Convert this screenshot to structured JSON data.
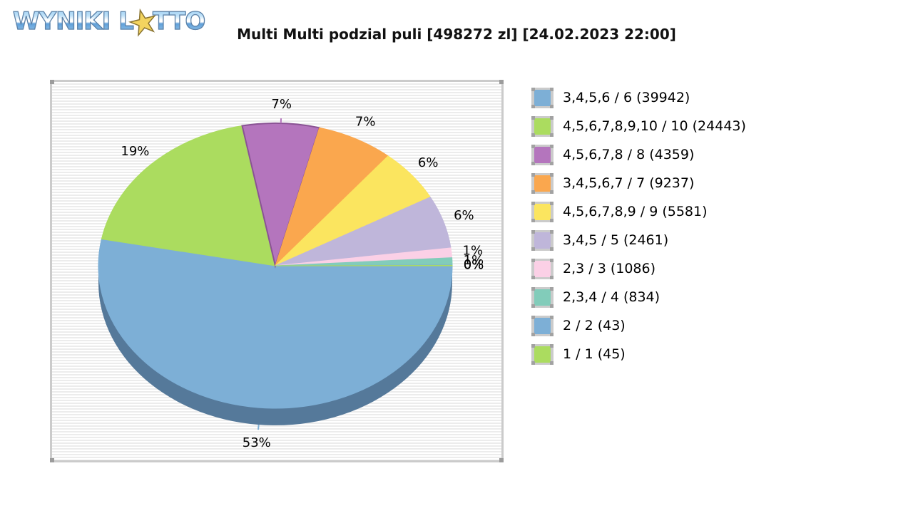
{
  "logo": {
    "word1": "WYNIKI",
    "word2_prefix": "L",
    "word2_suffix": "TTO",
    "star_icon": "★"
  },
  "title": "Multi Multi podzial puli [498272 zl] [24.02.2023 22:00]",
  "chart_data": {
    "type": "pie",
    "style": "3d",
    "title": "Multi Multi podzial puli [498272 zl] [24.02.2023 22:00]",
    "pool_total_zl": 498272,
    "draw_datetime": "24.02.2023 22:00",
    "legend_position": "right",
    "start_angle_deg": 0,
    "direction": "clockwise",
    "depth_color": "#55799a",
    "slices": [
      {
        "tier": "3,4,5,6 / 6",
        "winners": 39942,
        "percent_label": "53%",
        "legend_label": "3,4,5,6 / 6 (39942)",
        "color": "#7dafd6",
        "draw_percent": 53.0,
        "tick": true
      },
      {
        "tier": "4,5,6,7,8,9,10 / 10",
        "winners": 24443,
        "percent_label": "19%",
        "legend_label": "4,5,6,7,8,9,10 / 10 (24443)",
        "color": "#abdc5f",
        "draw_percent": 19.0
      },
      {
        "tier": "4,5,6,7,8 / 8",
        "winners": 4359,
        "percent_label": "7%",
        "legend_label": "4,5,6,7,8 / 8 (4359)",
        "color": "#b475bd",
        "edge_color": "#8a5394",
        "draw_percent": 7.0,
        "tick": true
      },
      {
        "tier": "3,4,5,6,7 / 7",
        "winners": 9237,
        "percent_label": "7%",
        "legend_label": "3,4,5,6,7 / 7 (9237)",
        "color": "#faa74e",
        "draw_percent": 7.0
      },
      {
        "tier": "4,5,6,7,8,9 / 9",
        "winners": 5581,
        "percent_label": "6%",
        "legend_label": "4,5,6,7,8,9 / 9 (5581)",
        "color": "#fbe55f",
        "draw_percent": 6.0
      },
      {
        "tier": "3,4,5 / 5",
        "winners": 2461,
        "percent_label": "6%",
        "legend_label": "3,4,5 / 5 (2461)",
        "color": "#bfb6da",
        "draw_percent": 6.0
      },
      {
        "tier": "2,3 / 3",
        "winners": 1086,
        "percent_label": "1%",
        "legend_label": "2,3 / 3 (1086)",
        "color": "#fbd0e6",
        "draw_percent": 1.1
      },
      {
        "tier": "2,3,4 / 4",
        "winners": 834,
        "percent_label": "1%",
        "legend_label": "2,3,4 / 4 (834)",
        "color": "#82ccba",
        "draw_percent": 0.8
      },
      {
        "tier": "2 / 2",
        "winners": 43,
        "percent_label": "0%",
        "legend_label": "2 / 2 (43)",
        "color": "#7dafd6",
        "draw_percent": 0.05
      },
      {
        "tier": "1 / 1",
        "winners": 45,
        "percent_label": "0%",
        "legend_label": "1 / 1 (45)",
        "color": "#abdc5f",
        "draw_percent": 0.05
      }
    ]
  }
}
